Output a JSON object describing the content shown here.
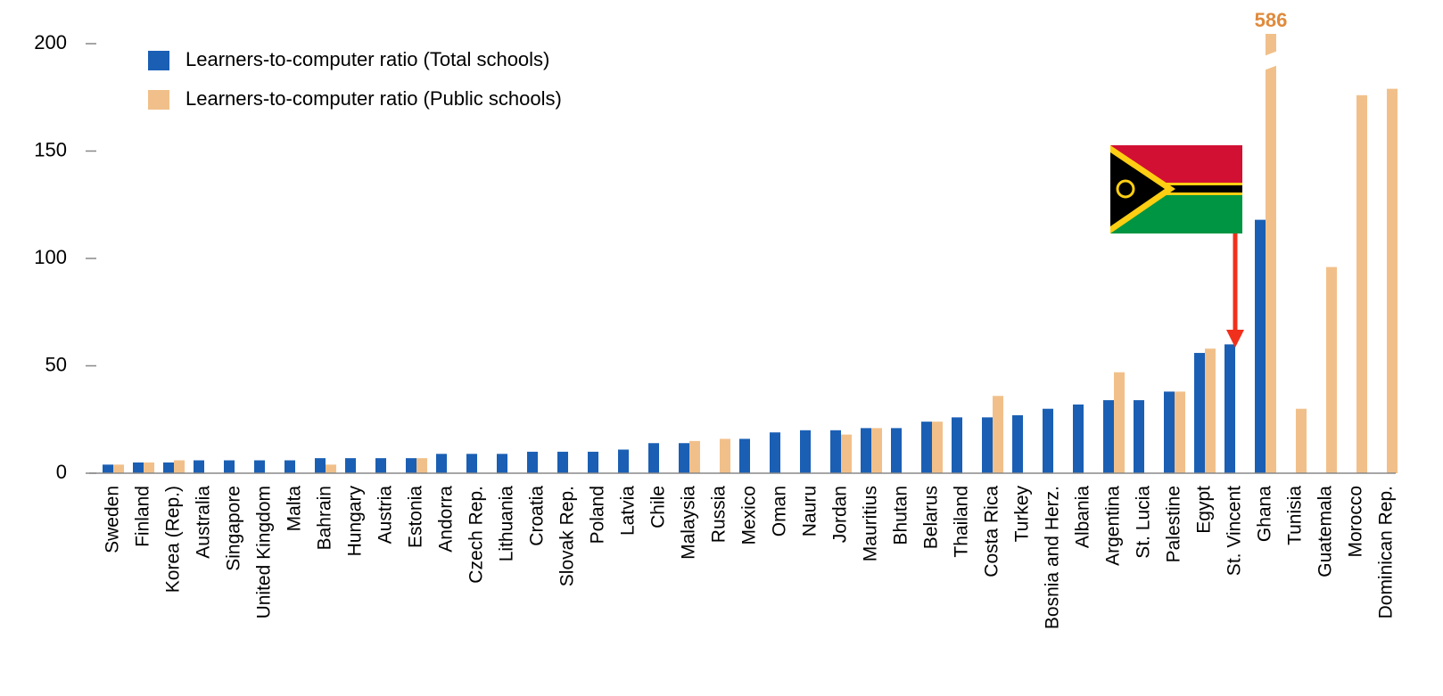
{
  "chart_data": {
    "type": "bar",
    "categories": [
      "Sweden",
      "Finland",
      "Korea (Rep.)",
      "Australia",
      "Singapore",
      "United Kingdom",
      "Malta",
      "Bahrain",
      "Hungary",
      "Austria",
      "Estonia",
      "Andorra",
      "Czech Rep.",
      "Lithuania",
      "Croatia",
      "Slovak Rep.",
      "Poland",
      "Latvia",
      "Chile",
      "Malaysia",
      "Russia",
      "Mexico",
      "Oman",
      "Nauru",
      "Jordan",
      "Mauritius",
      "Bhutan",
      "Belarus",
      "Thailand",
      "Costa Rica",
      "Turkey",
      "Bosnia and Herz.",
      "Albania",
      "Argentina",
      "St. Lucia",
      "Palestine",
      "Egypt",
      "St. Vincent",
      "Ghana",
      "Tunisia",
      "Guatemala",
      "Morocco",
      "Dominican Rep."
    ],
    "series": [
      {
        "name": "Learners-to-computer ratio (Total schools)",
        "color": "#1a5fb4",
        "values": [
          4,
          5,
          5,
          6,
          6,
          6,
          6,
          7,
          7,
          7,
          7,
          9,
          9,
          9,
          10,
          10,
          10,
          11,
          14,
          14,
          null,
          16,
          19,
          20,
          20,
          21,
          21,
          24,
          26,
          26,
          27,
          30,
          32,
          34,
          34,
          38,
          56,
          60,
          118,
          null,
          null,
          null,
          null
        ]
      },
      {
        "name": "Learners-to-computer ratio (Public schools)",
        "color": "#f1c08a",
        "values": [
          4,
          5,
          6,
          null,
          null,
          null,
          null,
          4,
          null,
          null,
          7,
          null,
          null,
          null,
          null,
          null,
          null,
          null,
          null,
          15,
          16,
          null,
          null,
          null,
          18,
          21,
          null,
          24,
          null,
          36,
          null,
          null,
          null,
          47,
          null,
          38,
          58,
          null,
          586,
          30,
          96,
          176,
          179
        ],
        "value_labels": [
          null,
          null,
          null,
          null,
          null,
          null,
          null,
          null,
          null,
          null,
          null,
          null,
          null,
          null,
          null,
          null,
          null,
          null,
          null,
          null,
          null,
          null,
          null,
          null,
          null,
          null,
          null,
          null,
          null,
          null,
          null,
          null,
          null,
          null,
          null,
          null,
          null,
          null,
          "586",
          null,
          null,
          null,
          null
        ]
      }
    ],
    "ylim": [
      0,
      200
    ],
    "yticks": [
      0,
      50,
      100,
      150,
      200
    ],
    "grid": false,
    "legend": "top-left"
  }
}
